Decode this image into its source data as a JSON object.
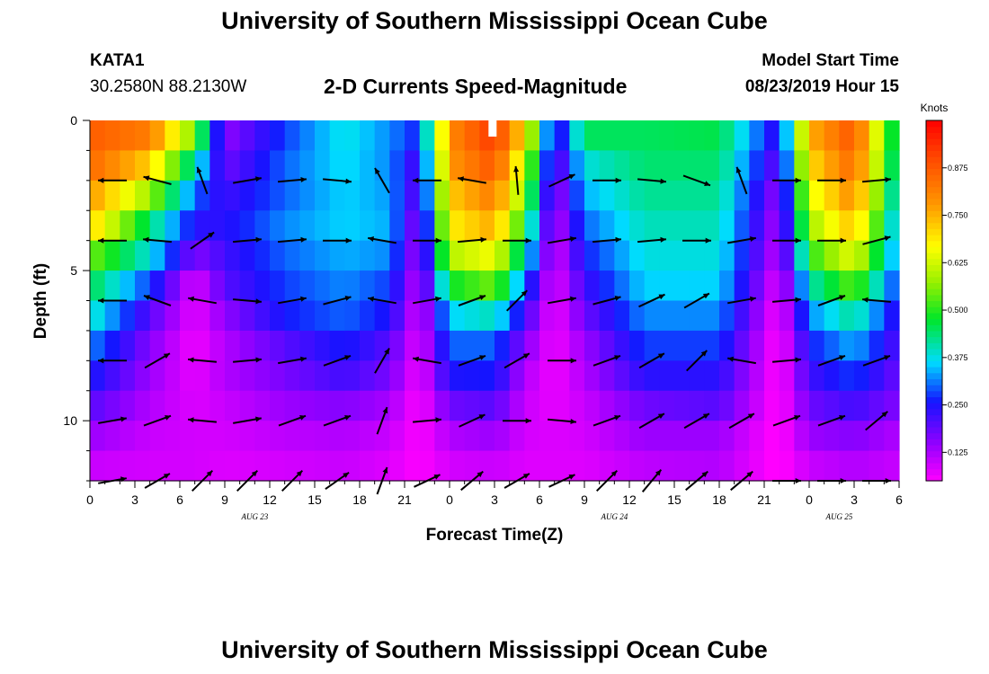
{
  "header": {
    "title": "University of Southern Mississippi Ocean Cube",
    "station": "KATA1",
    "coordinates": "30.2580N 88.2130W",
    "subtitle": "2-D Currents Speed-Magnitude",
    "model_start_label": "Model Start Time",
    "model_start_time": "08/23/2019 Hour 15"
  },
  "footer": {
    "title": "University of Southern Mississippi Ocean Cube"
  },
  "chart_data": {
    "type": "heatmap",
    "title": "2-D Currents Speed-Magnitude",
    "xlabel": "Forecast Time(Z)",
    "ylabel": "Depth (ft)",
    "x_tick_labels": [
      "0",
      "3",
      "6",
      "9",
      "12",
      "15",
      "18",
      "21",
      "0",
      "3",
      "6",
      "9",
      "12",
      "15",
      "18",
      "21",
      "0",
      "3",
      "6"
    ],
    "x_range_hours": [
      0,
      54
    ],
    "date_labels": [
      {
        "hour": 11,
        "label": "AUG 23"
      },
      {
        "hour": 35,
        "label": "AUG 24"
      },
      {
        "hour": 50,
        "label": "AUG 25"
      }
    ],
    "y_tick_labels": [
      "0",
      "5",
      "10"
    ],
    "y_range_ft": [
      0,
      12
    ],
    "colorbar": {
      "unit": "Knots",
      "range": [
        0.05,
        1.0
      ],
      "ticks": [
        0.125,
        0.25,
        0.375,
        0.5,
        0.625,
        0.75,
        0.875
      ],
      "tick_labels": [
        "0.125",
        "0.250",
        "0.375",
        "0.500",
        "0.625",
        "0.750",
        "0.875"
      ]
    },
    "depth_levels_ft": [
      0.5,
      1.5,
      2.5,
      3.5,
      4.5,
      5.5,
      6.5,
      7.5,
      8.5,
      9.5,
      10.5,
      11.5
    ],
    "keyframes": [
      {
        "hour": 0,
        "profile": [
          0.87,
          0.85,
          0.78,
          0.72,
          0.55,
          0.46,
          0.4,
          0.32,
          0.26,
          0.2,
          0.14,
          0.1
        ]
      },
      {
        "hour": 4,
        "profile": [
          0.82,
          0.72,
          0.58,
          0.44,
          0.38,
          0.28,
          0.2,
          0.16,
          0.14,
          0.12,
          0.1,
          0.09
        ]
      },
      {
        "hour": 7,
        "profile": [
          0.55,
          0.4,
          0.3,
          0.24,
          0.16,
          0.08,
          0.07,
          0.06,
          0.07,
          0.08,
          0.09,
          0.09
        ]
      },
      {
        "hour": 9,
        "profile": [
          0.15,
          0.18,
          0.22,
          0.24,
          0.22,
          0.2,
          0.15,
          0.12,
          0.12,
          0.1,
          0.09,
          0.08
        ]
      },
      {
        "hour": 13,
        "profile": [
          0.28,
          0.3,
          0.3,
          0.32,
          0.3,
          0.28,
          0.26,
          0.2,
          0.17,
          0.14,
          0.11,
          0.09
        ]
      },
      {
        "hour": 17,
        "profile": [
          0.38,
          0.37,
          0.36,
          0.36,
          0.34,
          0.32,
          0.3,
          0.26,
          0.22,
          0.16,
          0.12,
          0.1
        ]
      },
      {
        "hour": 20,
        "profile": [
          0.32,
          0.32,
          0.33,
          0.34,
          0.32,
          0.28,
          0.25,
          0.2,
          0.17,
          0.13,
          0.1,
          0.08
        ]
      },
      {
        "hour": 22,
        "profile": [
          0.26,
          0.2,
          0.18,
          0.14,
          0.12,
          0.1,
          0.08,
          0.07,
          0.06,
          0.05,
          0.05,
          0.05
        ]
      },
      {
        "hour": 24,
        "profile": [
          0.8,
          0.78,
          0.72,
          0.68,
          0.6,
          0.48,
          0.36,
          0.3,
          0.25,
          0.18,
          0.12,
          0.09
        ]
      },
      {
        "hour": 27,
        "profile": [
          0.92,
          0.88,
          0.82,
          0.76,
          0.66,
          0.55,
          0.4,
          0.3,
          0.26,
          0.2,
          0.14,
          0.1
        ]
      },
      {
        "hour": 29,
        "profile": [
          0.7,
          0.62,
          0.56,
          0.48,
          0.4,
          0.3,
          0.22,
          0.16,
          0.12,
          0.1,
          0.09,
          0.08
        ]
      },
      {
        "hour": 31,
        "profile": [
          0.2,
          0.16,
          0.12,
          0.1,
          0.08,
          0.07,
          0.06,
          0.06,
          0.06,
          0.07,
          0.08,
          0.08
        ]
      },
      {
        "hour": 33,
        "profile": [
          0.45,
          0.38,
          0.34,
          0.3,
          0.26,
          0.22,
          0.18,
          0.14,
          0.12,
          0.1,
          0.09,
          0.08
        ]
      },
      {
        "hour": 37,
        "profile": [
          0.45,
          0.44,
          0.42,
          0.4,
          0.38,
          0.36,
          0.32,
          0.28,
          0.24,
          0.18,
          0.14,
          0.11
        ]
      },
      {
        "hour": 42,
        "profile": [
          0.46,
          0.44,
          0.42,
          0.4,
          0.38,
          0.36,
          0.32,
          0.28,
          0.24,
          0.2,
          0.14,
          0.12
        ]
      },
      {
        "hour": 46,
        "profile": [
          0.22,
          0.18,
          0.14,
          0.12,
          0.1,
          0.07,
          0.05,
          0.04,
          0.04,
          0.04,
          0.04,
          0.04
        ]
      },
      {
        "hour": 48,
        "profile": [
          0.75,
          0.7,
          0.64,
          0.58,
          0.5,
          0.4,
          0.32,
          0.26,
          0.22,
          0.18,
          0.14,
          0.1
        ]
      },
      {
        "hour": 51,
        "profile": [
          0.88,
          0.85,
          0.8,
          0.74,
          0.65,
          0.54,
          0.42,
          0.34,
          0.28,
          0.22,
          0.16,
          0.12
        ]
      },
      {
        "hour": 54,
        "profile": [
          0.4,
          0.38,
          0.35,
          0.32,
          0.3,
          0.26,
          0.22,
          0.2,
          0.18,
          0.16,
          0.12,
          0.1
        ]
      }
    ],
    "vectors": {
      "times_hour": [
        1.5,
        4.5,
        7.5,
        10.5,
        13.5,
        16.5,
        19.5,
        22.5,
        25.5,
        28.5,
        31.5,
        34.5,
        37.5,
        40.5,
        43.5,
        46.5,
        49.5,
        52.5
      ],
      "depths_ft": [
        2,
        4,
        6,
        8,
        10,
        12
      ],
      "angle_deg": [
        [
          180,
          165,
          110,
          10,
          5,
          -5,
          120,
          180,
          170,
          95,
          25,
          0,
          -5,
          -20,
          110,
          0,
          0,
          5
        ],
        [
          180,
          175,
          35,
          5,
          5,
          0,
          170,
          0,
          5,
          0,
          10,
          5,
          5,
          0,
          10,
          0,
          0,
          15
        ],
        [
          180,
          160,
          170,
          -5,
          10,
          15,
          170,
          10,
          20,
          45,
          10,
          15,
          25,
          30,
          10,
          5,
          20,
          175
        ],
        [
          180,
          30,
          175,
          5,
          10,
          20,
          60,
          170,
          20,
          30,
          0,
          20,
          30,
          45,
          170,
          5,
          20,
          20
        ],
        [
          10,
          20,
          175,
          10,
          20,
          20,
          70,
          5,
          25,
          0,
          -5,
          20,
          30,
          30,
          30,
          20,
          20,
          40
        ],
        [
          10,
          30,
          45,
          45,
          45,
          35,
          70,
          25,
          40,
          30,
          25,
          45,
          50,
          40,
          40,
          0,
          0,
          0
        ]
      ]
    }
  }
}
